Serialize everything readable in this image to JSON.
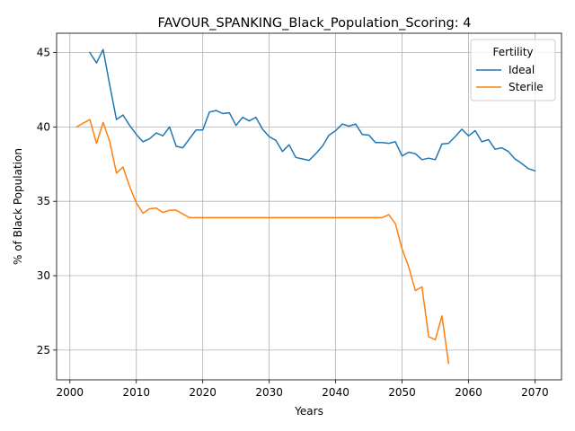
{
  "chart_data": {
    "type": "line",
    "title": "FAVOUR_SPANKING_Black_Population_Scoring: 4",
    "xlabel": "Years",
    "ylabel": "% of Black Population",
    "xlim": [
      1998,
      2074
    ],
    "ylim": [
      23,
      46.3
    ],
    "xticks": [
      2000,
      2010,
      2020,
      2030,
      2040,
      2050,
      2060,
      2070
    ],
    "yticks": [
      25,
      30,
      35,
      40,
      45
    ],
    "grid": true,
    "legend": {
      "title": "Fertility",
      "placement": "top-right"
    },
    "series": [
      {
        "name": "Ideal",
        "color": "#1f77b4",
        "x": [
          2003,
          2004,
          2005,
          2006,
          2007,
          2008,
          2009,
          2010,
          2011,
          2012,
          2013,
          2014,
          2015,
          2016,
          2017,
          2018,
          2019,
          2020,
          2021,
          2022,
          2023,
          2024,
          2025,
          2026,
          2027,
          2028,
          2029,
          2030,
          2031,
          2032,
          2033,
          2034,
          2035,
          2036,
          2037,
          2038,
          2039,
          2040,
          2041,
          2042,
          2043,
          2044,
          2045,
          2046,
          2047,
          2048,
          2049,
          2050,
          2051,
          2052,
          2053,
          2054,
          2055,
          2056,
          2057,
          2058,
          2059,
          2060,
          2061,
          2062,
          2063,
          2064,
          2065,
          2066,
          2067,
          2068,
          2069,
          2070
        ],
        "y": [
          45.0,
          44.3,
          45.2,
          42.8,
          40.5,
          40.8,
          40.1,
          39.5,
          39.0,
          39.2,
          39.6,
          39.4,
          40.0,
          38.7,
          38.6,
          39.2,
          39.8,
          39.8,
          41.0,
          41.1,
          40.9,
          40.95,
          40.1,
          40.65,
          40.4,
          40.65,
          39.85,
          39.35,
          39.1,
          38.35,
          38.8,
          37.95,
          37.85,
          37.75,
          38.2,
          38.7,
          39.45,
          39.75,
          40.2,
          40.05,
          40.2,
          39.5,
          39.45,
          38.95,
          38.95,
          38.9,
          39.0,
          38.05,
          38.3,
          38.2,
          37.8,
          37.9,
          37.8,
          38.85,
          38.9,
          39.35,
          39.85,
          39.4,
          39.75,
          39.0,
          39.15,
          38.5,
          38.6,
          38.35,
          37.85,
          37.55,
          37.2,
          37.05
        ]
      },
      {
        "name": "Sterile",
        "color": "#ff7f0e",
        "x": [
          2001,
          2002,
          2003,
          2004,
          2005,
          2006,
          2007,
          2008,
          2009,
          2010,
          2011,
          2012,
          2013,
          2014,
          2015,
          2016,
          2017,
          2018,
          2019,
          2020,
          2021,
          2022,
          2023,
          2024,
          2025,
          2026,
          2027,
          2028,
          2029,
          2030,
          2031,
          2032,
          2033,
          2034,
          2035,
          2036,
          2037,
          2038,
          2039,
          2040,
          2041,
          2042,
          2043,
          2044,
          2045,
          2046,
          2047,
          2048,
          2049,
          2050,
          2051,
          2052,
          2053,
          2054,
          2055,
          2056,
          2057
        ],
        "y": [
          40.0,
          40.25,
          40.5,
          38.9,
          40.3,
          39.0,
          36.9,
          37.3,
          36.0,
          34.9,
          34.2,
          34.5,
          34.55,
          34.25,
          34.4,
          34.4,
          34.15,
          33.9,
          33.9,
          33.9,
          33.9,
          33.9,
          33.9,
          33.9,
          33.9,
          33.9,
          33.9,
          33.9,
          33.9,
          33.9,
          33.9,
          33.9,
          33.9,
          33.9,
          33.9,
          33.9,
          33.9,
          33.9,
          33.9,
          33.9,
          33.9,
          33.9,
          33.9,
          33.9,
          33.9,
          33.9,
          33.9,
          34.1,
          33.5,
          31.8,
          30.6,
          29.0,
          29.25,
          25.9,
          25.7,
          27.3,
          24.1
        ]
      }
    ]
  }
}
